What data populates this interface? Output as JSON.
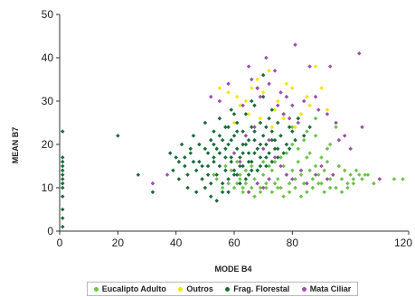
{
  "chart_data": {
    "type": "scatter",
    "title": "",
    "xlabel": "MODE B4",
    "ylabel": "MEAN B7",
    "xlim": [
      0,
      120
    ],
    "ylim": [
      0,
      50
    ],
    "x_ticks": [
      "0",
      "20",
      "40",
      "60",
      "80",
      "120"
    ],
    "y_ticks": [
      "0",
      "10",
      "20",
      "30",
      "40",
      "50"
    ],
    "grid": false,
    "legend_position": "bottom",
    "series": [
      {
        "name": "Eucalipto Adulto",
        "color": "#6cc24a",
        "points": [
          [
            58,
            11
          ],
          [
            60,
            10
          ],
          [
            62,
            12
          ],
          [
            63,
            9
          ],
          [
            64,
            11
          ],
          [
            65,
            13
          ],
          [
            66,
            10
          ],
          [
            67,
            12
          ],
          [
            68,
            11
          ],
          [
            69,
            9
          ],
          [
            70,
            13
          ],
          [
            71,
            10
          ],
          [
            72,
            12
          ],
          [
            73,
            14
          ],
          [
            74,
            11
          ],
          [
            75,
            12
          ],
          [
            76,
            10
          ],
          [
            77,
            15
          ],
          [
            78,
            13
          ],
          [
            79,
            11
          ],
          [
            80,
            14
          ],
          [
            81,
            12
          ],
          [
            82,
            16
          ],
          [
            83,
            13
          ],
          [
            84,
            11
          ],
          [
            85,
            17
          ],
          [
            86,
            14
          ],
          [
            87,
            12
          ],
          [
            88,
            15
          ],
          [
            89,
            13
          ],
          [
            90,
            11
          ],
          [
            91,
            14
          ],
          [
            92,
            16
          ],
          [
            93,
            12
          ],
          [
            94,
            13
          ],
          [
            95,
            10
          ],
          [
            96,
            15
          ],
          [
            97,
            12
          ],
          [
            98,
            14
          ],
          [
            99,
            11
          ],
          [
            100,
            13
          ],
          [
            101,
            12
          ],
          [
            102,
            14
          ],
          [
            103,
            13
          ],
          [
            104,
            12
          ],
          [
            106,
            13
          ],
          [
            78,
            18
          ],
          [
            80,
            20
          ],
          [
            82,
            19
          ],
          [
            84,
            21
          ],
          [
            86,
            18
          ],
          [
            88,
            22
          ],
          [
            90,
            17
          ],
          [
            92,
            19
          ],
          [
            85,
            23
          ],
          [
            80,
            24
          ],
          [
            88,
            26
          ],
          [
            93,
            20
          ],
          [
            95,
            24
          ],
          [
            76,
            17
          ],
          [
            74,
            16
          ],
          [
            72,
            15
          ],
          [
            70,
            16
          ],
          [
            68,
            14
          ],
          [
            66,
            15
          ],
          [
            64,
            14
          ],
          [
            62,
            13
          ],
          [
            61,
            11
          ],
          [
            63,
            10
          ],
          [
            65,
            9
          ],
          [
            67,
            8
          ],
          [
            69,
            10
          ],
          [
            71,
            11
          ],
          [
            73,
            9
          ],
          [
            75,
            10
          ],
          [
            77,
            8
          ],
          [
            79,
            9
          ],
          [
            81,
            10
          ],
          [
            83,
            8
          ],
          [
            85,
            9
          ],
          [
            87,
            10
          ],
          [
            89,
            11
          ],
          [
            91,
            9
          ],
          [
            93,
            10
          ],
          [
            97,
            9
          ],
          [
            99,
            10
          ],
          [
            101,
            11
          ],
          [
            105,
            13
          ],
          [
            108,
            11
          ],
          [
            110,
            12
          ],
          [
            115,
            12
          ],
          [
            118,
            12
          ],
          [
            56,
            10
          ],
          [
            54,
            12
          ],
          [
            53,
            13
          ],
          [
            57,
            15
          ],
          [
            59,
            14
          ],
          [
            61,
            16
          ]
        ]
      },
      {
        "name": "Outros",
        "color": "#f2e600",
        "points": [
          [
            55,
            33
          ],
          [
            58,
            32
          ],
          [
            61,
            31
          ],
          [
            64,
            30
          ],
          [
            66,
            33
          ],
          [
            68,
            35
          ],
          [
            70,
            32
          ],
          [
            72,
            37
          ],
          [
            75,
            30
          ],
          [
            78,
            34
          ],
          [
            80,
            33
          ],
          [
            83,
            27
          ],
          [
            85,
            31
          ],
          [
            88,
            38
          ],
          [
            90,
            33
          ],
          [
            92,
            28
          ],
          [
            77,
            26
          ],
          [
            74,
            28
          ],
          [
            69,
            26
          ],
          [
            65,
            27
          ],
          [
            62,
            29
          ],
          [
            60,
            25
          ],
          [
            73,
            24
          ],
          [
            81,
            24
          ],
          [
            86,
            29
          ]
        ]
      },
      {
        "name": "Frag. Florestal",
        "color": "#1a6b3a",
        "points": [
          [
            1,
            23
          ],
          [
            1,
            17
          ],
          [
            1,
            16
          ],
          [
            1,
            15
          ],
          [
            1,
            14
          ],
          [
            1,
            13
          ],
          [
            1,
            12
          ],
          [
            1,
            11
          ],
          [
            1,
            10
          ],
          [
            1,
            8
          ],
          [
            1,
            5
          ],
          [
            1,
            3
          ],
          [
            1,
            1
          ],
          [
            20,
            22
          ],
          [
            27,
            13
          ],
          [
            32,
            9
          ],
          [
            38,
            18
          ],
          [
            39,
            14
          ],
          [
            40,
            17
          ],
          [
            41,
            12
          ],
          [
            42,
            20
          ],
          [
            43,
            15
          ],
          [
            44,
            10
          ],
          [
            45,
            18
          ],
          [
            46,
            22
          ],
          [
            47,
            14
          ],
          [
            48,
            16
          ],
          [
            49,
            12
          ],
          [
            50,
            25
          ],
          [
            50,
            19
          ],
          [
            51,
            15
          ],
          [
            52,
            21
          ],
          [
            52,
            11
          ],
          [
            53,
            17
          ],
          [
            53,
            23
          ],
          [
            54,
            13
          ],
          [
            54,
            19
          ],
          [
            55,
            26
          ],
          [
            55,
            15
          ],
          [
            56,
            21
          ],
          [
            56,
            9
          ],
          [
            57,
            17
          ],
          [
            57,
            24
          ],
          [
            58,
            12
          ],
          [
            58,
            20
          ],
          [
            59,
            28
          ],
          [
            59,
            16
          ],
          [
            60,
            22
          ],
          [
            60,
            14
          ],
          [
            61,
            19
          ],
          [
            61,
            25
          ],
          [
            62,
            11
          ],
          [
            62,
            17
          ],
          [
            63,
            23
          ],
          [
            63,
            15
          ],
          [
            64,
            20
          ],
          [
            64,
            27
          ],
          [
            65,
            13
          ],
          [
            65,
            18
          ],
          [
            66,
            24
          ],
          [
            66,
            16
          ],
          [
            67,
            21
          ],
          [
            67,
            29
          ],
          [
            68,
            14
          ],
          [
            68,
            19
          ],
          [
            69,
            25
          ],
          [
            69,
            17
          ],
          [
            70,
            22
          ],
          [
            70,
            31
          ],
          [
            71,
            15
          ],
          [
            71,
            20
          ],
          [
            72,
            26
          ],
          [
            72,
            18
          ],
          [
            73,
            23
          ],
          [
            73,
            28
          ],
          [
            74,
            19
          ],
          [
            74,
            21
          ],
          [
            75,
            25
          ],
          [
            76,
            22
          ],
          [
            77,
            27
          ],
          [
            78,
            20
          ],
          [
            79,
            24
          ],
          [
            80,
            23
          ],
          [
            81,
            21
          ],
          [
            82,
            26
          ],
          [
            84,
            22
          ],
          [
            86,
            24
          ],
          [
            48,
            20
          ],
          [
            51,
            18
          ],
          [
            53,
            20
          ],
          [
            55,
            22
          ],
          [
            57,
            19
          ],
          [
            59,
            21
          ],
          [
            61,
            23
          ],
          [
            63,
            18
          ],
          [
            65,
            21
          ],
          [
            67,
            23
          ],
          [
            69,
            20
          ],
          [
            71,
            24
          ],
          [
            73,
            21
          ],
          [
            75,
            19
          ],
          [
            47,
            9
          ],
          [
            50,
            10
          ],
          [
            52,
            8
          ],
          [
            54,
            7
          ],
          [
            56,
            11
          ],
          [
            58,
            9
          ],
          [
            60,
            13
          ],
          [
            62,
            15
          ],
          [
            64,
            12
          ],
          [
            66,
            14
          ],
          [
            44,
            13
          ],
          [
            46,
            16
          ],
          [
            49,
            15
          ],
          [
            51,
            13
          ],
          [
            53,
            16
          ],
          [
            55,
            18
          ],
          [
            57,
            14
          ],
          [
            59,
            17
          ],
          [
            61,
            13
          ],
          [
            63,
            20
          ],
          [
            65,
            16
          ],
          [
            67,
            18
          ],
          [
            69,
            15
          ],
          [
            71,
            17
          ],
          [
            73,
            16
          ],
          [
            75,
            17
          ],
          [
            77,
            18
          ],
          [
            79,
            19
          ],
          [
            70,
            36
          ],
          [
            68,
            33
          ],
          [
            66,
            30
          ],
          [
            60,
            27
          ],
          [
            58,
            24
          ],
          [
            45,
            19
          ],
          [
            43,
            17
          ],
          [
            41,
            16
          ]
        ]
      },
      {
        "name": "Mata Ciliar",
        "color": "#9b4fa5",
        "points": [
          [
            32,
            11
          ],
          [
            37,
            13
          ],
          [
            52,
            31
          ],
          [
            55,
            30
          ],
          [
            58,
            34
          ],
          [
            63,
            29
          ],
          [
            65,
            38
          ],
          [
            66,
            35
          ],
          [
            68,
            33
          ],
          [
            69,
            31
          ],
          [
            71,
            40
          ],
          [
            72,
            34
          ],
          [
            74,
            37
          ],
          [
            75,
            29
          ],
          [
            76,
            32
          ],
          [
            77,
            27
          ],
          [
            78,
            31
          ],
          [
            79,
            26
          ],
          [
            80,
            29
          ],
          [
            81,
            43
          ],
          [
            82,
            25
          ],
          [
            84,
            30
          ],
          [
            86,
            38
          ],
          [
            88,
            31
          ],
          [
            89,
            28
          ],
          [
            92,
            27
          ],
          [
            93,
            38
          ],
          [
            95,
            25
          ],
          [
            96,
            21
          ],
          [
            98,
            22
          ],
          [
            100,
            19
          ],
          [
            103,
            41
          ],
          [
            104,
            24
          ],
          [
            110,
            12
          ],
          [
            60,
            18
          ],
          [
            62,
            16
          ],
          [
            64,
            22
          ],
          [
            67,
            24
          ],
          [
            70,
            19
          ],
          [
            72,
            21
          ],
          [
            74,
            17
          ],
          [
            76,
            15
          ],
          [
            78,
            13
          ],
          [
            80,
            12
          ],
          [
            83,
            14
          ],
          [
            85,
            11
          ],
          [
            88,
            13
          ],
          [
            90,
            15
          ],
          [
            92,
            12
          ],
          [
            94,
            13
          ],
          [
            70,
            10
          ],
          [
            72,
            12
          ],
          [
            68,
            11
          ],
          [
            65,
            9
          ]
        ]
      }
    ]
  }
}
